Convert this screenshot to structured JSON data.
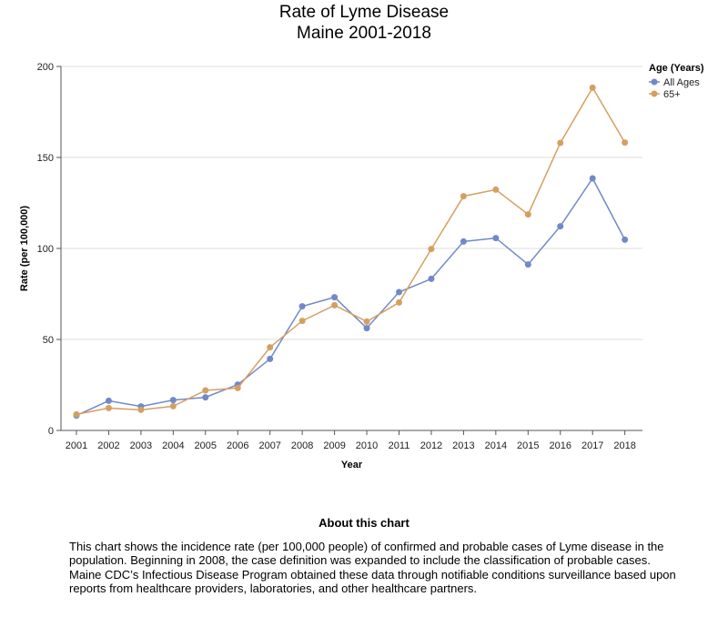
{
  "chart_data": {
    "type": "line",
    "title": "Rate of Lyme Disease",
    "subtitle": "Maine 2001-2018",
    "xlabel": "Year",
    "ylabel": "Rate (per 100,000)",
    "x": [
      "2001",
      "2002",
      "2003",
      "2004",
      "2005",
      "2006",
      "2007",
      "2008",
      "2009",
      "2010",
      "2011",
      "2012",
      "2013",
      "2014",
      "2015",
      "2016",
      "2017",
      "2018"
    ],
    "ylim": [
      0,
      200
    ],
    "yticks": [
      "0",
      "50",
      "100",
      "150",
      "200"
    ],
    "grid": true,
    "legend": {
      "title": "Age (Years)",
      "placement": "top-right"
    },
    "series": [
      {
        "name": "All Ages",
        "color": "#7189c8",
        "values": [
          8.2,
          16.3,
          13.2,
          16.7,
          18.2,
          25.2,
          39.3,
          68.2,
          73.2,
          56.2,
          76.0,
          83.3,
          103.8,
          105.7,
          91.2,
          112.2,
          138.5,
          104.8
        ]
      },
      {
        "name": "65+",
        "color": "#d4a062",
        "values": [
          8.8,
          12.3,
          11.3,
          13.3,
          22.0,
          23.3,
          45.7,
          60.2,
          68.8,
          59.8,
          70.3,
          99.7,
          128.7,
          132.3,
          118.7,
          158.0,
          188.3,
          158.2
        ]
      }
    ]
  },
  "about": {
    "title": "About this chart",
    "text": "This chart shows the incidence rate (per 100,000 people) of confirmed and probable cases of Lyme disease in the population. Beginning in 2008, the case definition was expanded to include the classification of probable cases. Maine CDC’s Infectious Disease Program obtained these data through notifiable conditions surveillance based upon reports from healthcare providers, laboratories, and other healthcare partners."
  }
}
